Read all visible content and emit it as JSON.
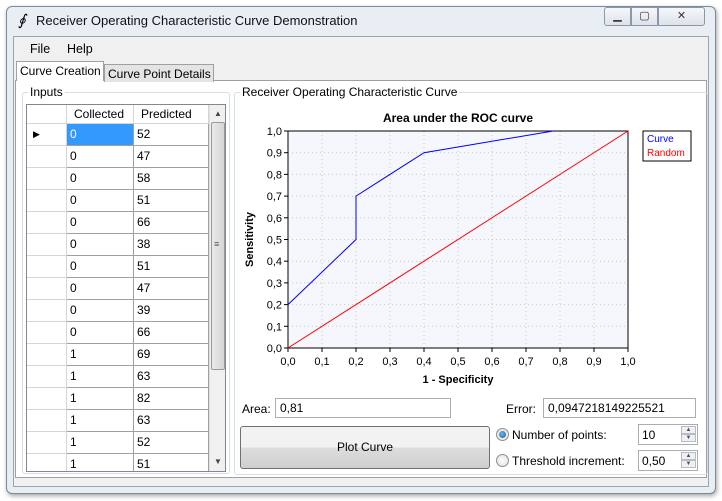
{
  "window": {
    "title": "Receiver Operating Characteristic Curve Demonstration",
    "icon": "integral-icon",
    "controls": [
      "minimize",
      "maximize",
      "close"
    ]
  },
  "menu": [
    "File",
    "Help"
  ],
  "tabs": [
    {
      "label": "Curve Creation",
      "active": true
    },
    {
      "label": "Curve Point Details",
      "active": false
    }
  ],
  "inputs": {
    "label": "Inputs",
    "columns": [
      "Collected",
      "Predicted"
    ],
    "rows": [
      [
        "0",
        "52"
      ],
      [
        "0",
        "47"
      ],
      [
        "0",
        "58"
      ],
      [
        "0",
        "51"
      ],
      [
        "0",
        "66"
      ],
      [
        "0",
        "38"
      ],
      [
        "0",
        "51"
      ],
      [
        "0",
        "47"
      ],
      [
        "0",
        "39"
      ],
      [
        "0",
        "66"
      ],
      [
        "1",
        "69"
      ],
      [
        "1",
        "63"
      ],
      [
        "1",
        "82"
      ],
      [
        "1",
        "63"
      ],
      [
        "1",
        "52"
      ],
      [
        "1",
        "51"
      ]
    ]
  },
  "roc": {
    "label": "Receiver Operating Characteristic Curve",
    "area_label": "Area:",
    "area_value": "0,81",
    "error_label": "Error:",
    "error_value": "0,0947218149225521",
    "plot_button": "Plot Curve",
    "options": [
      {
        "label": "Number of points:",
        "value": "10",
        "selected": true
      },
      {
        "label": "Threshold increment:",
        "value": "0,50",
        "selected": false
      }
    ]
  },
  "chart_data": {
    "type": "line",
    "title": "Area under the ROC curve",
    "xlabel": "1 - Specificity",
    "ylabel": "Sensitivity",
    "xlim": [
      0,
      1
    ],
    "ylim": [
      0,
      1
    ],
    "grid": true,
    "legend": "top-right",
    "ticks": [
      "0,0",
      "0,1",
      "0,2",
      "0,3",
      "0,4",
      "0,5",
      "0,6",
      "0,7",
      "0,8",
      "0,9",
      "1,0"
    ],
    "series": [
      {
        "name": "Curve",
        "color": "#0000ff",
        "x": [
          0,
          0.2,
          0.2,
          0.4,
          0.78
        ],
        "y": [
          0.2,
          0.5,
          0.7,
          0.9,
          1.0
        ]
      },
      {
        "name": "Random",
        "color": "#ff0000",
        "x": [
          0,
          1
        ],
        "y": [
          0,
          1
        ]
      }
    ]
  }
}
